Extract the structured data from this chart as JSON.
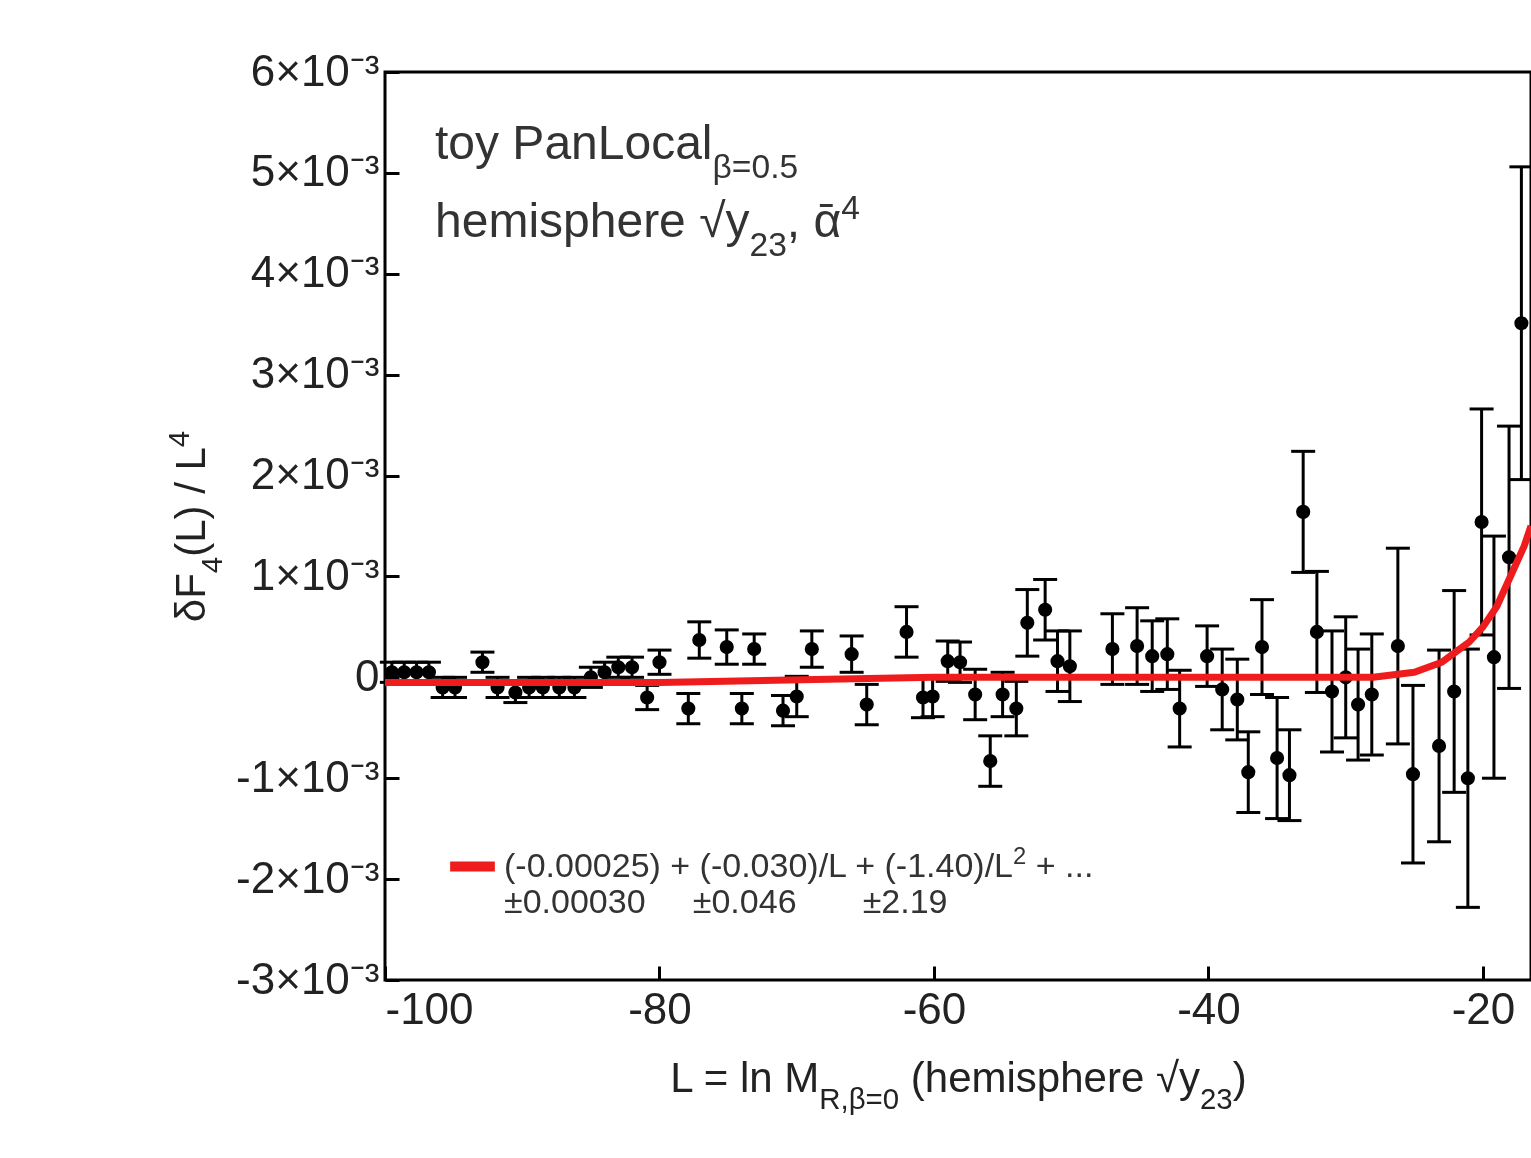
{
  "chart_data": {
    "type": "scatter",
    "xlabel": "L = ln M$_{R,β=0}$ (hemisphere √y$_{23}$)",
    "ylabel": "δF$_{4}$(L) / L$^{4}$",
    "annotations": [
      "toy PanLocal$_{β=0.5}$",
      "hemisphere √y$_{23}$, ᾱ$^{4}$",
      "±0.00030     ±0.046       ±2.19"
    ],
    "xlim": [
      -100,
      -16.5
    ],
    "xticks": [
      -100,
      -80,
      -60,
      -40,
      -20
    ],
    "ylim": [
      -0.003,
      0.006
    ],
    "yticks": [
      {
        "value": -0.003,
        "label": "-3×10⁻³"
      },
      {
        "value": -0.002,
        "label": "-2×10⁻³"
      },
      {
        "value": -0.001,
        "label": "-1×10⁻³"
      },
      0,
      {
        "value": 0.001,
        "label": "1×10⁻³"
      },
      {
        "value": 0.002,
        "label": "2×10⁻³"
      },
      {
        "value": 0.003,
        "label": "3×10⁻³"
      },
      {
        "value": 0.004,
        "label": "4×10⁻³"
      },
      {
        "value": 0.005,
        "label": "5×10⁻³"
      },
      {
        "value": 0.006,
        "label": "6×10⁻³"
      }
    ],
    "grid": false,
    "marker": "circle",
    "legend": "bottom left",
    "series": [
      {
        "color": "#000000",
        "x": [
          -99.5,
          -98.6,
          -97.7,
          -96.8,
          -95.8,
          -94.9,
          -92.9,
          -91.8,
          -90.5,
          -89.5,
          -88.5,
          -87.3,
          -86.2,
          -85,
          -84,
          -83,
          -82,
          -80.9,
          -80,
          -77.9,
          -77.1,
          -75.1,
          -74,
          -73.1,
          -71,
          -70,
          -68.9,
          -66,
          -64.9,
          -62,
          -60.8,
          -60.1,
          -59,
          -58.1,
          -57,
          -55.9,
          -55,
          -54,
          -53.2,
          -51.9,
          -51,
          -50.1,
          -47,
          -45.2,
          -44.1,
          -43,
          -42.1,
          -40.1,
          -39,
          -37.9,
          -37.1,
          -36.1,
          -35,
          -34.1,
          -33.1,
          -32.1,
          -31,
          -30,
          -29.1,
          -28.1,
          -26.2,
          -25.1,
          -23.2,
          -22.1,
          -21.1,
          -20.1,
          -19.2,
          -18.1,
          -17.2
        ],
        "values": [
          5e-05,
          5e-05,
          5e-05,
          5e-05,
          -0.0001,
          -0.0001,
          0.00015,
          -0.0001,
          -0.00015,
          -0.0001,
          -0.0001,
          -0.0001,
          -0.0001,
          0.0,
          5e-05,
          0.0001,
          0.0001,
          -0.0002,
          0.00015,
          -0.00031,
          0.00037,
          0.0003,
          -0.00031,
          0.00028,
          -0.00033,
          -0.00019,
          0.00028,
          0.00023,
          -0.00027,
          0.00045,
          -0.0002,
          -0.00019,
          0.00016,
          0.00015,
          -0.00017,
          -0.00083,
          -0.00017,
          -0.00031,
          0.00054,
          0.00067,
          0.00016,
          0.00011,
          0.00028,
          0.00031,
          0.00021,
          0.00023,
          -0.00031,
          0.00021,
          -0.00012,
          -0.00022,
          -0.00094,
          0.0003,
          -0.0008,
          -0.00097,
          0.00164,
          0.00045,
          -0.00014,
          0.0,
          -0.00027,
          -0.00017,
          0.00031,
          -0.00096,
          -0.00068,
          -0.00014,
          -0.001,
          0.00154,
          0.0002,
          0.00119,
          0.00351
        ],
        "errors": [
          0.0001,
          0.0001,
          0.0001,
          0.0001,
          0.0001,
          0.0001,
          0.0001,
          0.0001,
          0.0001,
          0.0001,
          0.0001,
          0.0001,
          0.0001,
          0.0001,
          0.0001,
          0.0001,
          0.0001,
          0.00012,
          0.00012,
          0.00015,
          0.00018,
          0.00017,
          0.00015,
          0.00015,
          0.00015,
          0.0002,
          0.00018,
          0.00018,
          0.0002,
          0.00025,
          0.0002,
          0.0002,
          0.0002,
          0.0002,
          0.00025,
          0.00025,
          0.00022,
          0.00027,
          0.00033,
          0.0003,
          0.0003,
          0.00035,
          0.00035,
          0.00038,
          0.00035,
          0.00035,
          0.00038,
          0.0003,
          0.0004,
          0.0004,
          0.0004,
          0.00047,
          0.0006,
          0.00045,
          0.0006,
          0.0006,
          0.0006,
          0.0006,
          0.00055,
          0.0006,
          0.00097,
          0.00088,
          0.00095,
          0.001,
          0.00128,
          0.00112,
          0.0012,
          0.0013,
          0.00155
        ]
      },
      {
        "type": "line",
        "name": "(-0.00025) + (-0.030)/L + (-1.40)/L$^{2}$ + ...",
        "color": "#ee1c1c",
        "line_style": "solid",
        "marker": "none",
        "x": [
          -100,
          -80,
          -60,
          -40,
          -32,
          -28,
          -25,
          -23,
          -22,
          -21,
          -20,
          -19,
          -18,
          -17,
          -16.5
        ],
        "values": [
          -5e-05,
          -5e-05,
          0.0,
          0.0,
          0.0,
          0.0,
          5e-05,
          0.00015,
          0.00025,
          0.00035,
          0.0005,
          0.0007,
          0.001,
          0.0013,
          0.0015
        ]
      }
    ]
  }
}
